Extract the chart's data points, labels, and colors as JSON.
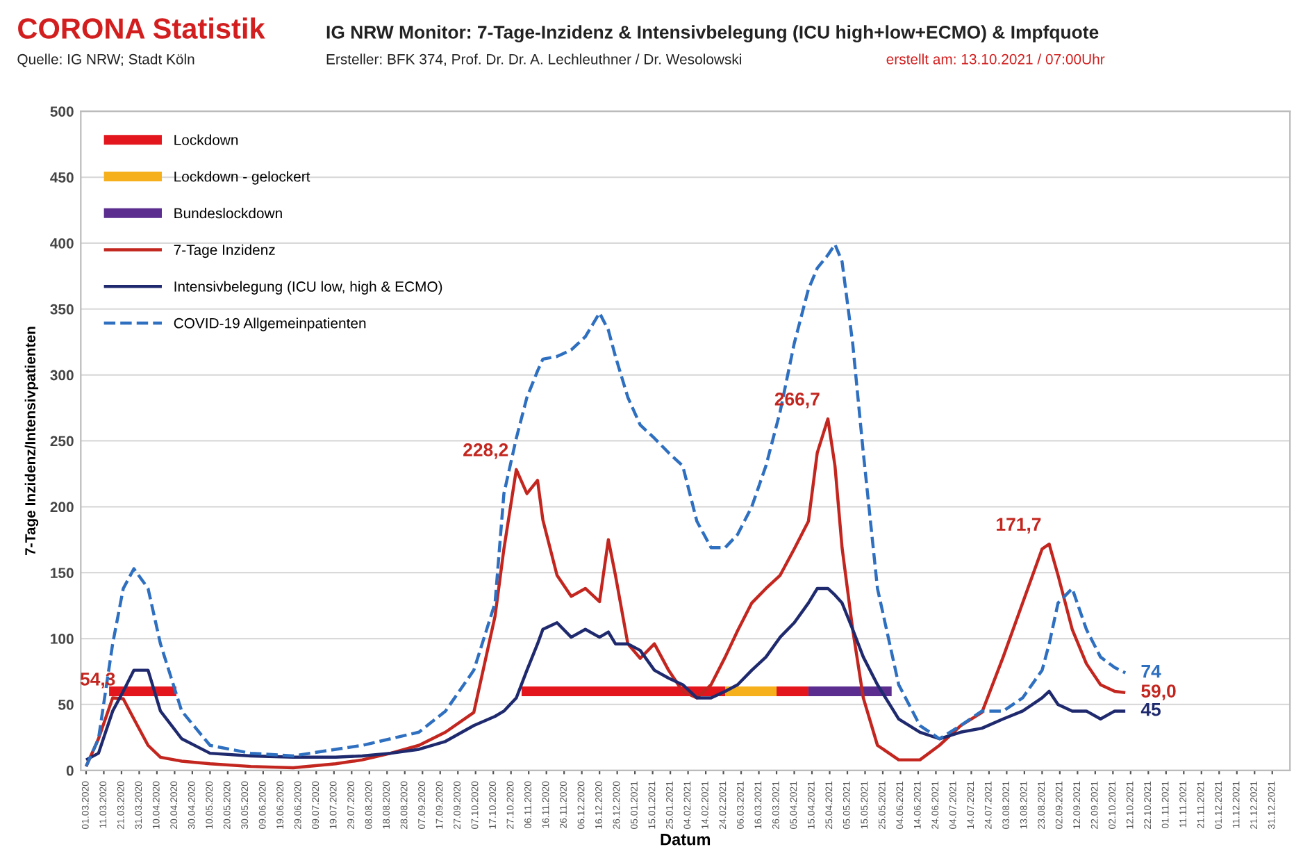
{
  "chart_data": {
    "type": "line",
    "title": "CORONA Statistik",
    "subtitle": "IG NRW Monitor: 7-Tage-Inzidenz & Intensivbelegung (ICU high+low+ECMO) & Impfquote",
    "xlabel": "Datum",
    "ylabel": "7-Tage Inzidenz/Intensivpatienten",
    "x": [
      "2020-03-01",
      "2020-03-08",
      "2020-03-16",
      "2020-03-22",
      "2020-03-28",
      "2020-04-05",
      "2020-04-12",
      "2020-04-24",
      "2020-05-10",
      "2020-06-02",
      "2020-06-26",
      "2020-07-20",
      "2020-08-04",
      "2020-08-20",
      "2020-09-05",
      "2020-09-20",
      "2020-10-06",
      "2020-10-18",
      "2020-10-23",
      "2020-10-30",
      "2020-11-05",
      "2020-11-11",
      "2020-11-14",
      "2020-11-22",
      "2020-11-30",
      "2020-12-08",
      "2020-12-16",
      "2020-12-21",
      "2020-12-25",
      "2021-01-01",
      "2021-01-08",
      "2021-01-16",
      "2021-01-24",
      "2021-02-01",
      "2021-02-09",
      "2021-02-17",
      "2021-02-25",
      "2021-03-04",
      "2021-03-12",
      "2021-03-20",
      "2021-03-28",
      "2021-04-05",
      "2021-04-13",
      "2021-04-18",
      "2021-04-24",
      "2021-04-28",
      "2021-05-02",
      "2021-05-08",
      "2021-05-14",
      "2021-05-22",
      "2021-06-03",
      "2021-06-15",
      "2021-06-26",
      "2021-07-08",
      "2021-07-20",
      "2021-08-01",
      "2021-08-12",
      "2021-08-23",
      "2021-08-27",
      "2021-09-01",
      "2021-09-09",
      "2021-09-17",
      "2021-09-25",
      "2021-10-03",
      "2021-10-09"
    ],
    "series": [
      {
        "name": "Lockdown",
        "color": "#e3161e",
        "x": [
          "2020-03-14",
          "2020-04-21",
          "2020-07-01",
          "2020-11-02",
          "2021-02-25",
          "2021-03-10",
          "2021-03-26",
          "2021-04-13"
        ],
        "values": [
          60,
          60,
          null,
          60,
          60,
          null,
          60,
          60
        ]
      },
      {
        "name": "Lockdown - gelockert",
        "color": "#f5b01c",
        "x": [
          "2021-02-25",
          "2021-03-26"
        ],
        "values": [
          60,
          60
        ]
      },
      {
        "name": "Bundeslockdown",
        "color": "#5a2d8e",
        "x": [
          "2021-04-13",
          "2021-05-30"
        ],
        "values": [
          60,
          60
        ]
      },
      {
        "name": "7-Tage Inzidenz",
        "color": "#c3261f",
        "values": [
          3,
          24,
          55,
          54.3,
          39,
          19,
          10,
          7,
          5,
          3,
          2,
          5,
          8,
          13,
          19,
          29,
          44,
          117,
          168,
          228.2,
          210,
          220,
          190,
          148,
          132,
          138,
          128,
          175,
          148,
          96,
          85,
          96,
          76,
          60,
          55,
          65,
          86,
          106,
          127,
          138,
          148,
          168,
          189,
          241,
          266.7,
          231,
          169,
          107,
          55,
          19,
          8,
          8,
          19,
          34,
          44,
          86,
          127,
          168,
          171.7,
          148,
          107,
          81,
          65,
          60,
          59.0
        ]
      },
      {
        "name": "Intensivbelegung (ICU low, high & ECMO)",
        "color": "#1f2a6e",
        "values": [
          8,
          13,
          45,
          60,
          76,
          76,
          45,
          24,
          13,
          11,
          10,
          10,
          11,
          13,
          16,
          22,
          34,
          41,
          45,
          55,
          76,
          96,
          107,
          112,
          101,
          107,
          101,
          105,
          96,
          96,
          91,
          76,
          70,
          65,
          55,
          55,
          60,
          65,
          76,
          86,
          101,
          112,
          127,
          138,
          138,
          133,
          127,
          107,
          86,
          65,
          39,
          29,
          24,
          29,
          32,
          39,
          45,
          55,
          60,
          50,
          45,
          45,
          39,
          45,
          45
        ]
      },
      {
        "name": "COVID-19 Allgemeinpatienten",
        "color": "#2e6fc0",
        "line_style": "dashed",
        "values": [
          3,
          24,
          96,
          138,
          153,
          138,
          96,
          45,
          19,
          13,
          11,
          16,
          19,
          24,
          29,
          45,
          76,
          127,
          210,
          252,
          283,
          303,
          312,
          314,
          319,
          329,
          347,
          334,
          314,
          283,
          262,
          252,
          241,
          231,
          189,
          169,
          169,
          179,
          200,
          231,
          272,
          324,
          365,
          381,
          391,
          399,
          386,
          324,
          241,
          138,
          65,
          34,
          24,
          34,
          45,
          45,
          55,
          76,
          96,
          127,
          138,
          107,
          86,
          78,
          74
        ]
      }
    ],
    "xlim": [
      "2020-02-27",
      "2022-01-10"
    ],
    "xticks": [
      {
        "value": "2020-03-01",
        "label": "01.03.2020"
      },
      {
        "value": "2020-03-11",
        "label": "11.03.2020"
      },
      {
        "value": "2020-03-21",
        "label": "21.03.2020"
      },
      {
        "value": "2020-03-31",
        "label": "31.03.2020"
      },
      {
        "value": "2020-04-10",
        "label": "10.04.2020"
      },
      {
        "value": "2020-04-20",
        "label": "20.04.2020"
      },
      {
        "value": "2020-04-30",
        "label": "30.04.2020"
      },
      {
        "value": "2020-05-10",
        "label": "10.05.2020"
      },
      {
        "value": "2020-05-20",
        "label": "20.05.2020"
      },
      {
        "value": "2020-05-30",
        "label": "30.05.2020"
      },
      {
        "value": "2020-06-09",
        "label": "09.06.2020"
      },
      {
        "value": "2020-06-19",
        "label": "19.06.2020"
      },
      {
        "value": "2020-06-29",
        "label": "29.06.2020"
      },
      {
        "value": "2020-07-09",
        "label": "09.07.2020"
      },
      {
        "value": "2020-07-19",
        "label": "19.07.2020"
      },
      {
        "value": "2020-07-29",
        "label": "29.07.2020"
      },
      {
        "value": "2020-08-08",
        "label": "08.08.2020"
      },
      {
        "value": "2020-08-18",
        "label": "18.08.2020"
      },
      {
        "value": "2020-08-28",
        "label": "28.08.2020"
      },
      {
        "value": "2020-09-07",
        "label": "07.09.2020"
      },
      {
        "value": "2020-09-17",
        "label": "17.09.2020"
      },
      {
        "value": "2020-09-27",
        "label": "27.09.2020"
      },
      {
        "value": "2020-10-07",
        "label": "07.10.2020"
      },
      {
        "value": "2020-10-17",
        "label": "17.10.2020"
      },
      {
        "value": "2020-10-27",
        "label": "27.10.2020"
      },
      {
        "value": "2020-11-06",
        "label": "06.11.2020"
      },
      {
        "value": "2020-11-16",
        "label": "16.11.2020"
      },
      {
        "value": "2020-11-26",
        "label": "26.11.2020"
      },
      {
        "value": "2020-12-06",
        "label": "06.12.2020"
      },
      {
        "value": "2020-12-16",
        "label": "16.12.2020"
      },
      {
        "value": "2020-12-26",
        "label": "26.12.2020"
      },
      {
        "value": "2021-01-05",
        "label": "05.01.2021"
      },
      {
        "value": "2021-01-15",
        "label": "15.01.2021"
      },
      {
        "value": "2021-01-25",
        "label": "25.01.2021"
      },
      {
        "value": "2021-02-04",
        "label": "04.02.2021"
      },
      {
        "value": "2021-02-14",
        "label": "14.02.2021"
      },
      {
        "value": "2021-02-24",
        "label": "24.02.2021"
      },
      {
        "value": "2021-03-06",
        "label": "06.03.2021"
      },
      {
        "value": "2021-03-16",
        "label": "16.03.2021"
      },
      {
        "value": "2021-03-26",
        "label": "26.03.2021"
      },
      {
        "value": "2021-04-05",
        "label": "05.04.2021"
      },
      {
        "value": "2021-04-15",
        "label": "15.04.2021"
      },
      {
        "value": "2021-04-25",
        "label": "25.04.2021"
      },
      {
        "value": "2021-05-05",
        "label": "05.05.2021"
      },
      {
        "value": "2021-05-15",
        "label": "15.05.2021"
      },
      {
        "value": "2021-05-25",
        "label": "25.05.2021"
      },
      {
        "value": "2021-06-04",
        "label": "04.06.2021"
      },
      {
        "value": "2021-06-14",
        "label": "14.06.2021"
      },
      {
        "value": "2021-06-24",
        "label": "24.06.2021"
      },
      {
        "value": "2021-07-04",
        "label": "04.07.2021"
      },
      {
        "value": "2021-07-14",
        "label": "14.07.2021"
      },
      {
        "value": "2021-07-24",
        "label": "24.07.2021"
      },
      {
        "value": "2021-08-03",
        "label": "03.08.2021"
      },
      {
        "value": "2021-08-13",
        "label": "13.08.2021"
      },
      {
        "value": "2021-08-23",
        "label": "23.08.2021"
      },
      {
        "value": "2021-09-02",
        "label": "02.09.2021"
      },
      {
        "value": "2021-09-12",
        "label": "12.09.2021"
      },
      {
        "value": "2021-09-22",
        "label": "22.09.2021"
      },
      {
        "value": "2021-10-02",
        "label": "02.10.2021"
      },
      {
        "value": "2021-10-12",
        "label": "12.10.2021"
      },
      {
        "value": "2021-10-22",
        "label": "22.10.2021"
      },
      {
        "value": "2021-11-01",
        "label": "01.11.2021"
      },
      {
        "value": "2021-11-11",
        "label": "11.11.2021"
      },
      {
        "value": "2021-11-21",
        "label": "21.11.2021"
      },
      {
        "value": "2021-12-01",
        "label": "01.12.2021"
      },
      {
        "value": "2021-12-11",
        "label": "11.12.2021"
      },
      {
        "value": "2021-12-21",
        "label": "21.12.2021"
      },
      {
        "value": "2021-12-31",
        "label": "31.12.2021"
      }
    ],
    "ylim": [
      0,
      500
    ],
    "yticks": [
      0,
      50,
      100,
      150,
      200,
      250,
      300,
      350,
      400,
      450,
      500
    ],
    "grid": "y",
    "legend": "top left",
    "annotations": [
      "Quelle: IG NRW; Stadt Köln",
      "Ersteller: BFK 374, Prof. Dr. Dr. A. Lechleuthner / Dr. Wesolowski",
      "erstellt am: 13.10.2021 / 07:00Uhr",
      {
        "text": "54,3",
        "x": "2020-03-22",
        "y": 54.3
      },
      {
        "text": "228,2",
        "x": "2020-10-30",
        "y": 228.2
      },
      {
        "text": "266,7",
        "x": "2021-04-24",
        "y": 266.7
      },
      {
        "text": "171,7",
        "x": "2021-08-27",
        "y": 171.7
      },
      {
        "text": "74",
        "x": "2021-10-09",
        "y": 74
      },
      {
        "text": "59,0",
        "x": "2021-10-09",
        "y": 59.0
      },
      {
        "text": "45",
        "x": "2021-10-09",
        "y": 45
      }
    ]
  }
}
